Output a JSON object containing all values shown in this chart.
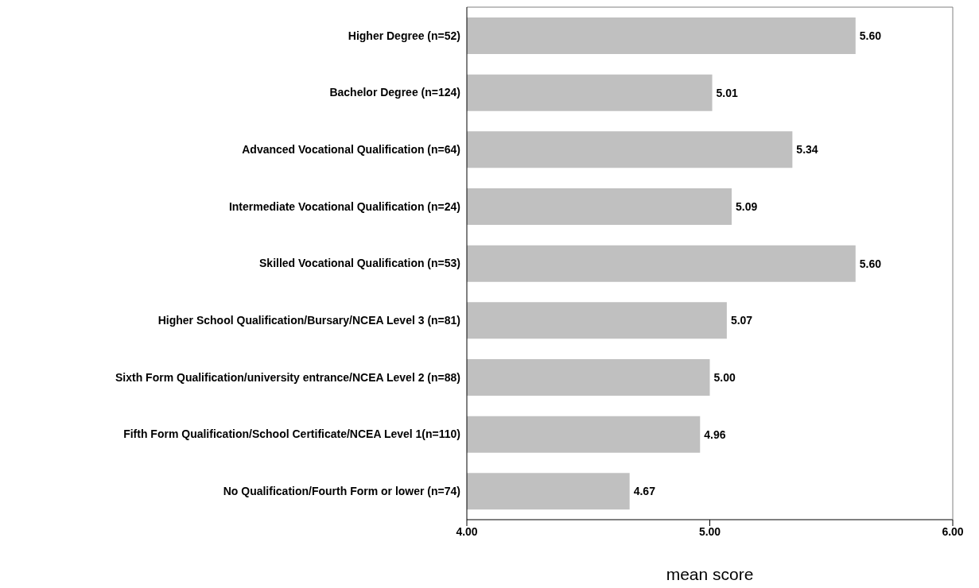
{
  "chart_data": {
    "type": "bar",
    "orientation": "horizontal",
    "xlabel": "mean score",
    "categories": [
      "Higher Degree (n=52)",
      "Bachelor Degree (n=124)",
      "Advanced Vocational Qualification (n=64)",
      "Intermediate Vocational Qualification (n=24)",
      "Skilled Vocational Qualification (n=53)",
      "Higher School Qualification/Bursary/NCEA Level 3 (n=81)",
      "Sixth Form Qualification/university entrance/NCEA Level 2 (n=88)",
      "Fifth Form Qualification/School Certificate/NCEA Level 1(n=110)",
      "No Qualification/Fourth Form or lower (n=74)"
    ],
    "values": [
      5.6,
      5.01,
      5.34,
      5.09,
      5.6,
      5.07,
      5.0,
      4.96,
      4.67
    ],
    "value_labels": [
      "5.60",
      "5.01",
      "5.34",
      "5.09",
      "5.60",
      "5.07",
      "5.00",
      "4.96",
      "4.67"
    ],
    "color": "#c0c0c0",
    "xlim": [
      4,
      6
    ],
    "xticks": [
      {
        "value": 4,
        "label": "4.00"
      },
      {
        "value": 5,
        "label": "5.00"
      },
      {
        "value": 6,
        "label": "6.00"
      }
    ],
    "grid": false,
    "legend": false
  }
}
